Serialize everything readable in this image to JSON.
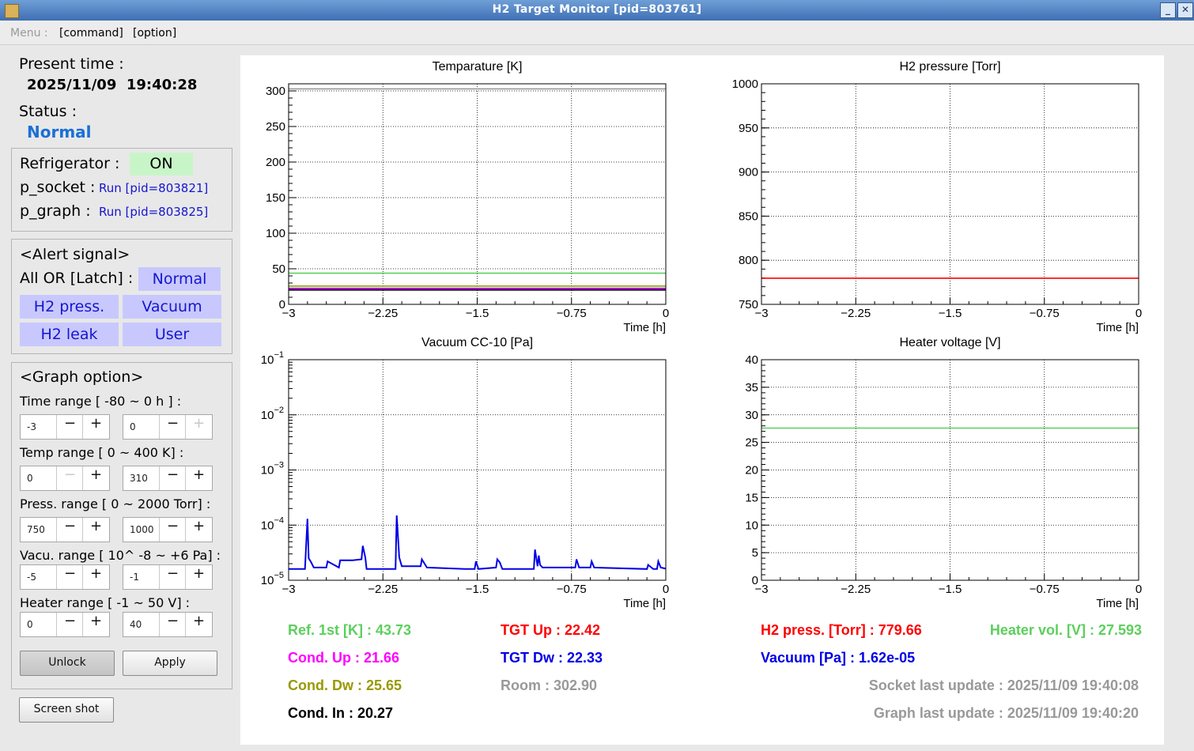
{
  "window": {
    "title": "H2 Target Monitor [pid=803761]"
  },
  "menu": {
    "label": "Menu :",
    "command": "[command]",
    "option": "[option]"
  },
  "left": {
    "present_time_label": "Present time :",
    "present_time": "2025/11/09  19:40:28",
    "status_label": "Status :",
    "status": "Normal",
    "refrigerator_label": "Refrigerator :",
    "refrigerator_state": "ON",
    "p_socket_label": "p_socket :",
    "p_socket_value": "Run [pid=803821]",
    "p_graph_label": "p_graph :",
    "p_graph_value": "Run [pid=803825]"
  },
  "alert": {
    "title": "<Alert signal>",
    "all_or_label": "All OR [Latch] :",
    "all_or_value": "Normal",
    "signals": [
      "H2 press.",
      "Vacuum",
      "H2 leak",
      "User"
    ]
  },
  "graph_option": {
    "title": "<Graph option>",
    "time_label": "Time range [ -80 ~ 0 h ] :",
    "time_min": "-3",
    "time_max": "0",
    "temp_label": "Temp range [ 0 ~ 400 K] :",
    "temp_min": "0",
    "temp_max": "310",
    "press_label": "Press. range [ 0 ~ 2000 Torr] :",
    "press_min": "750",
    "press_max": "1000",
    "vacu_label": "Vacu. range [ 10^ -8 ~ +6 Pa] :",
    "vacu_min": "-5",
    "vacu_max": "-1",
    "heater_label": "Heater range [ -1 ~ 50 V] :",
    "heater_min": "0",
    "heater_max": "40",
    "unlock": "Unlock",
    "apply": "Apply",
    "screenshot": "Screen shot"
  },
  "colors": {
    "green": "#5ccf5c",
    "magenta": "#ff00ff",
    "olive": "#999900",
    "red": "#ff0000",
    "blue": "#0000e6",
    "gray": "#999999",
    "status_blue": "#1a6fd6",
    "on_green": "#c8f5c8"
  },
  "chart_data": [
    {
      "type": "line",
      "title": "Temparature [K]",
      "xlabel": "Time [h]",
      "xlim": [
        -3,
        0
      ],
      "ylim": [
        0,
        310
      ],
      "x_ticks": [
        "−3",
        "−2.25",
        "−1.5",
        "−0.75",
        "0"
      ],
      "y_ticks": [
        "0",
        "50",
        "100",
        "150",
        "200",
        "250",
        "300"
      ],
      "grid": true,
      "series": [
        {
          "color": "#5ccf5c",
          "x": [
            -3,
            0
          ],
          "y": [
            43.73,
            43.73
          ]
        },
        {
          "color": "#ff0000",
          "x": [
            -3,
            0
          ],
          "y": [
            22.42,
            22.42
          ]
        },
        {
          "color": "#0000e6",
          "x": [
            -3,
            0
          ],
          "y": [
            22.33,
            22.33
          ]
        },
        {
          "color": "#ff00ff",
          "x": [
            -3,
            0
          ],
          "y": [
            21.66,
            21.66
          ]
        },
        {
          "color": "#999900",
          "x": [
            -3,
            0
          ],
          "y": [
            25.65,
            25.65
          ]
        },
        {
          "color": "#000000",
          "x": [
            -3,
            0
          ],
          "y": [
            20.27,
            20.27
          ]
        },
        {
          "color": "#999999",
          "x": [
            -3,
            0
          ],
          "y": [
            302.9,
            302.9
          ]
        }
      ]
    },
    {
      "type": "line",
      "title": "H2 pressure [Torr]",
      "xlabel": "Time [h]",
      "xlim": [
        -3,
        0
      ],
      "ylim": [
        750,
        1000
      ],
      "x_ticks": [
        "−3",
        "−2.25",
        "−1.5",
        "−0.75",
        "0"
      ],
      "y_ticks": [
        "750",
        "800",
        "850",
        "900",
        "950",
        "1000"
      ],
      "grid": true,
      "series": [
        {
          "color": "#ff0000",
          "x": [
            -3,
            0
          ],
          "y": [
            779.66,
            779.66
          ]
        }
      ]
    },
    {
      "type": "line",
      "title": "Vacuum CC-10 [Pa]",
      "xlabel": "Time [h]",
      "xlim": [
        -3,
        0
      ],
      "ylim": [
        1e-05,
        0.1
      ],
      "log_y": true,
      "x_ticks": [
        "−3",
        "−2.25",
        "−1.5",
        "−0.75",
        "0"
      ],
      "y_ticks": [
        "-5",
        "-4",
        "-3",
        "-2",
        "-1"
      ],
      "grid": true,
      "series": [
        {
          "color": "#0000e6",
          "x": [
            -3,
            -2.87,
            -2.85,
            -2.84,
            -2.82,
            -2.8,
            -2.7,
            -2.69,
            -2.6,
            -2.59,
            -2.5,
            -2.49,
            -2.42,
            -2.41,
            -2.39,
            -2.38,
            -2.37,
            -2.35,
            -2.15,
            -2.14,
            -2.12,
            -2.1,
            -1.95,
            -1.94,
            -1.9,
            -1.6,
            -1.52,
            -1.51,
            -1.49,
            -1.35,
            -1.34,
            -1.32,
            -1.3,
            -1.05,
            -1.04,
            -1.02,
            -1.01,
            -1.0,
            -0.98,
            -0.72,
            -0.71,
            -0.69,
            -0.6,
            -0.59,
            -0.57,
            -0.15,
            -0.14,
            -0.1,
            -0.07,
            -0.06,
            -0.04,
            0
          ],
          "y": [
            1.6e-05,
            1.6e-05,
            0.00013,
            2.5e-05,
            2.1e-05,
            1.7e-05,
            1.7e-05,
            2.2e-05,
            1.7e-05,
            2.3e-05,
            2.3e-05,
            2.3e-05,
            2.4e-05,
            4.2e-05,
            2.6e-05,
            1.6e-05,
            1.6e-05,
            1.6e-05,
            1.6e-05,
            0.00015,
            2.6e-05,
            1.8e-05,
            1.8e-05,
            2.4e-05,
            1.7e-05,
            1.6e-05,
            1.6e-05,
            2.2e-05,
            1.6e-05,
            1.7e-05,
            2.4e-05,
            2.1e-05,
            1.6e-05,
            1.6e-05,
            3.6e-05,
            1.8e-05,
            2.8e-05,
            1.9e-05,
            1.7e-05,
            1.7e-05,
            2.4e-05,
            1.7e-05,
            1.7e-05,
            2.2e-05,
            1.7e-05,
            1.6e-05,
            1.9e-05,
            1.6e-05,
            1.6e-05,
            2.2e-05,
            1.7e-05,
            1.62e-05
          ]
        }
      ]
    },
    {
      "type": "line",
      "title": "Heater voltage [V]",
      "xlabel": "Time [h]",
      "xlim": [
        -3,
        0
      ],
      "ylim": [
        0,
        40
      ],
      "x_ticks": [
        "−3",
        "−2.25",
        "−1.5",
        "−0.75",
        "0"
      ],
      "y_ticks": [
        "0",
        "5",
        "10",
        "15",
        "20",
        "25",
        "30",
        "35",
        "40"
      ],
      "grid": true,
      "series": [
        {
          "color": "#5ccf5c",
          "x": [
            -3,
            0
          ],
          "y": [
            27.593,
            27.593
          ]
        }
      ]
    }
  ],
  "readouts": {
    "ref1": "Ref. 1st [K] : 43.73",
    "cond_up": "Cond. Up : 21.66",
    "cond_dw": "Cond. Dw : 25.65",
    "cond_in": "Cond. In : 20.27",
    "tgt_up": "TGT Up : 22.42",
    "tgt_dw": "TGT Dw : 22.33",
    "room": "Room : 302.90",
    "h2press": "H2 press. [Torr] : 779.66",
    "heater": "Heater vol. [V] : 27.593",
    "vacuum": "Vacuum [Pa] : 1.62e-05",
    "socket_update": "Socket last update : 2025/11/09 19:40:08",
    "graph_update": "Graph last update : 2025/11/09 19:40:20"
  }
}
